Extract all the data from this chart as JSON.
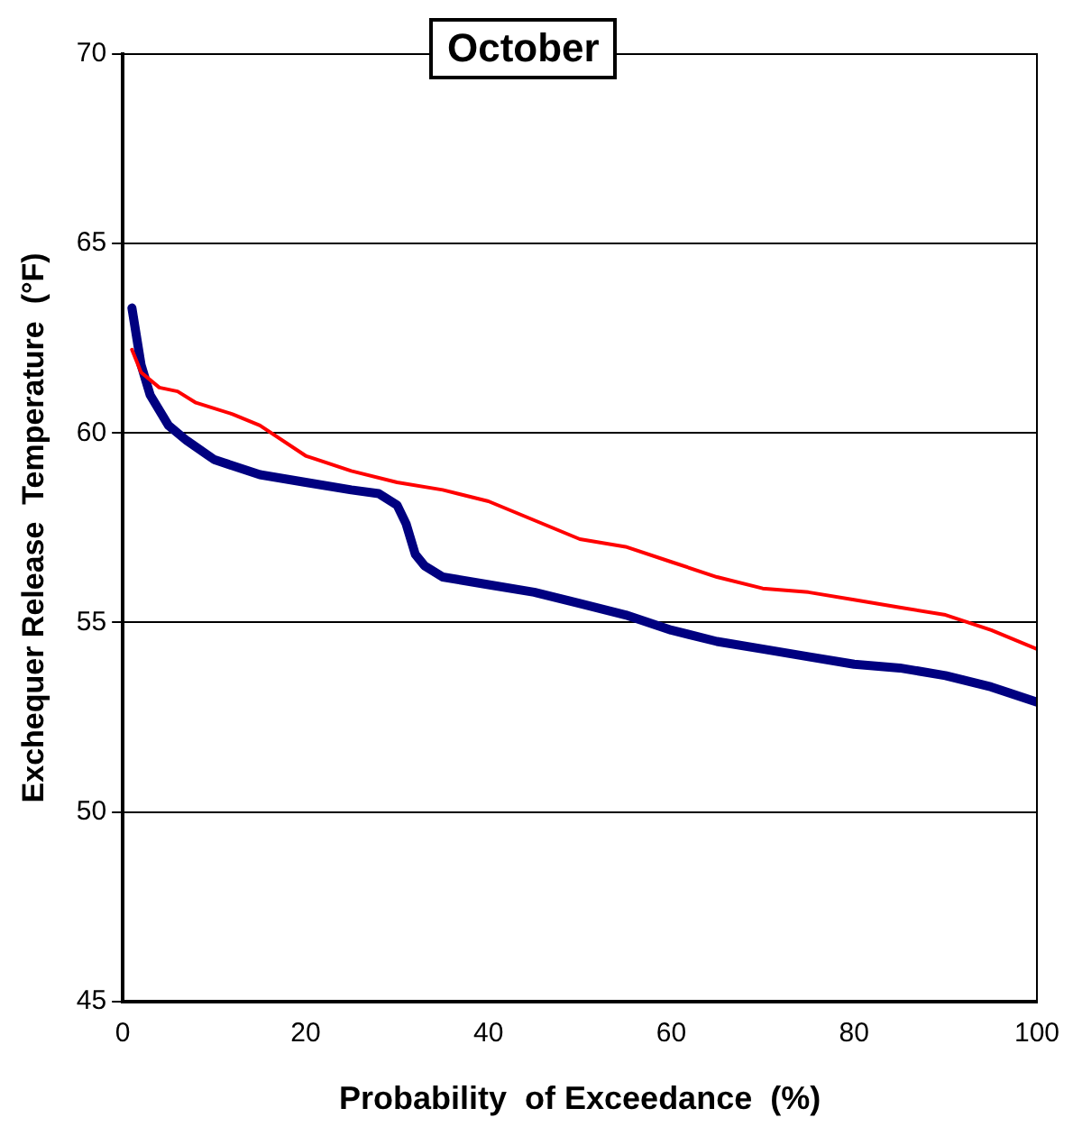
{
  "chart_data": {
    "type": "line",
    "title": "October",
    "xlabel": "Probability  of Exceedance  (%)",
    "ylabel": "Exchequer Release  Temperature  (°F)",
    "xlim": [
      0,
      100
    ],
    "xticks": [
      0,
      20,
      40,
      60,
      80,
      100
    ],
    "ylim": [
      45,
      70
    ],
    "yticks": [
      45,
      50,
      55,
      60,
      65,
      70
    ],
    "grid": "y",
    "legend": false,
    "marker": "none",
    "line_style": "solid",
    "series": [
      {
        "color": "#ff0000",
        "x": [
          1,
          2,
          4,
          6,
          8,
          12,
          15,
          20,
          25,
          30,
          35,
          40,
          45,
          50,
          55,
          60,
          65,
          70,
          75,
          80,
          85,
          90,
          95,
          100
        ],
        "values": [
          62.2,
          61.6,
          61.2,
          61.1,
          60.8,
          60.5,
          60.2,
          59.4,
          59.0,
          58.7,
          58.5,
          58.2,
          57.7,
          57.2,
          57.0,
          56.6,
          56.2,
          55.9,
          55.8,
          55.6,
          55.4,
          55.2,
          54.8,
          54.3
        ]
      },
      {
        "color": "#000080",
        "x": [
          1,
          2,
          3,
          5,
          7,
          10,
          15,
          20,
          25,
          28,
          30,
          31,
          32,
          33,
          35,
          40,
          45,
          50,
          55,
          60,
          65,
          70,
          75,
          80,
          85,
          90,
          95,
          100
        ],
        "values": [
          63.3,
          61.8,
          61.0,
          60.2,
          59.8,
          59.3,
          58.9,
          58.7,
          58.5,
          58.4,
          58.1,
          57.6,
          56.8,
          56.5,
          56.2,
          56.0,
          55.8,
          55.5,
          55.2,
          54.8,
          54.5,
          54.3,
          54.1,
          53.9,
          53.8,
          53.6,
          53.3,
          52.9
        ]
      }
    ]
  }
}
